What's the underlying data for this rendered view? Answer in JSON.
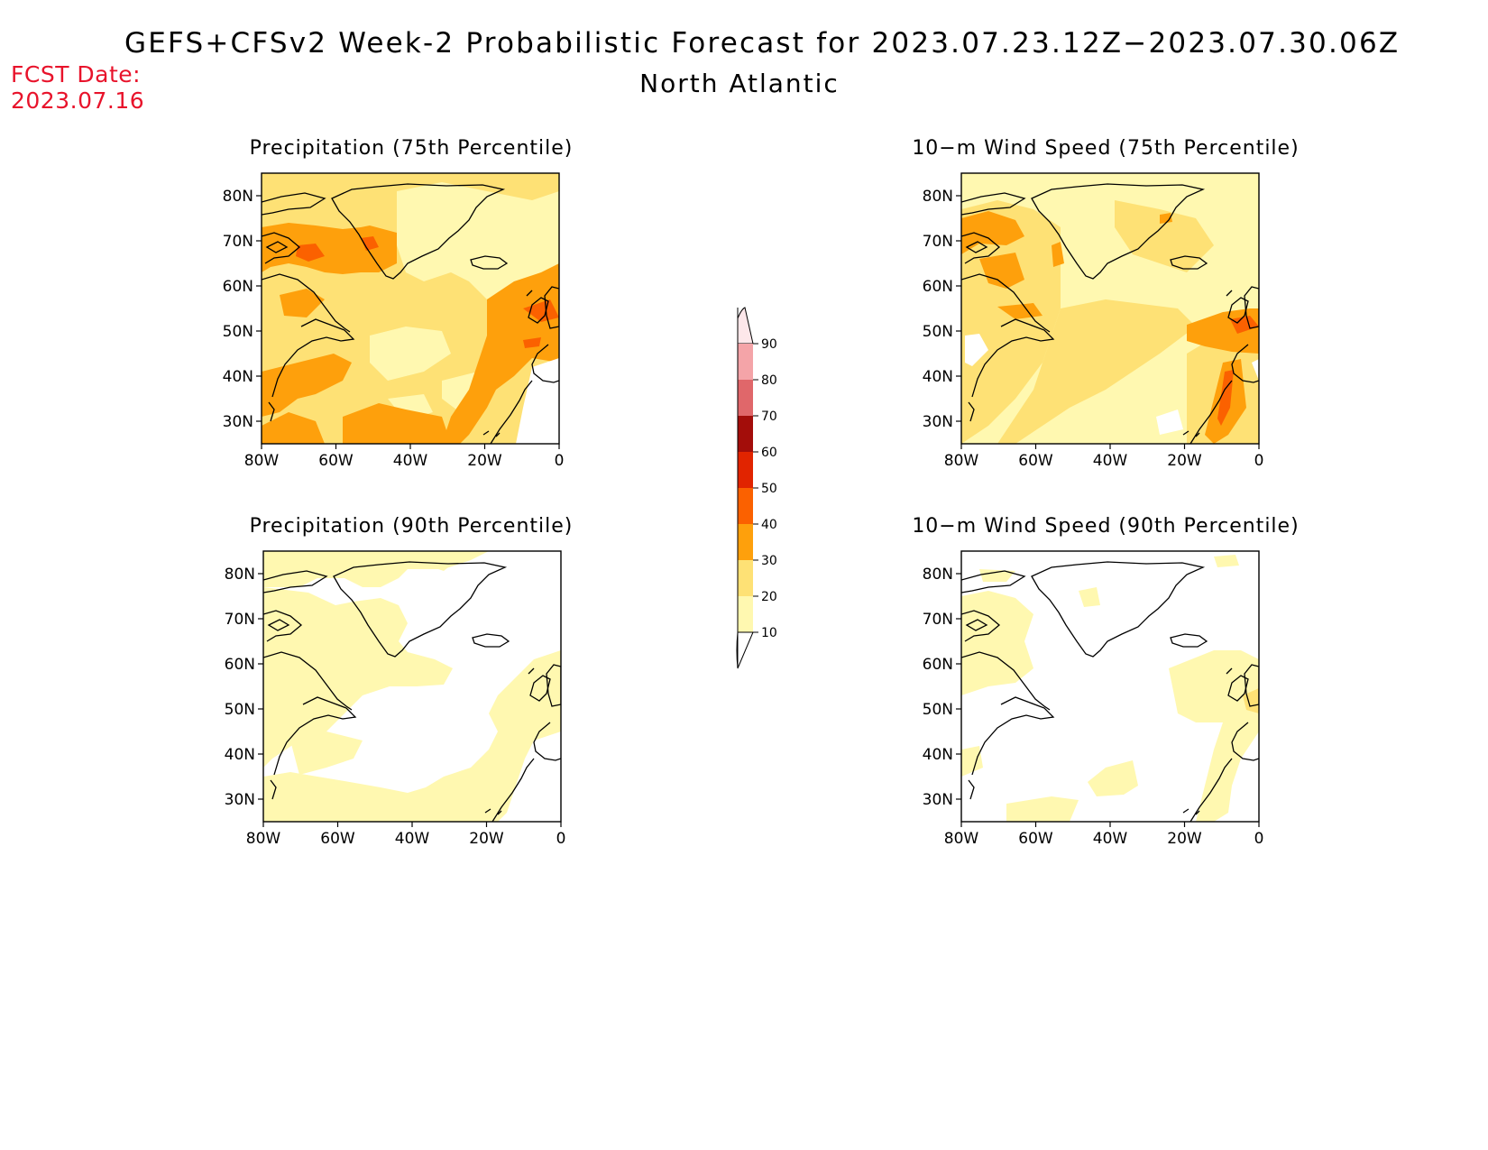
{
  "title": "GEFS+CFSv2 Week-2 Probabilistic Forecast for 2023.07.23.12Z−2023.07.30.06Z",
  "subtitle": "North Atlantic",
  "fcst_date": {
    "label": "FCST Date:",
    "value": "2023.07.16"
  },
  "lat_labels": [
    "80N",
    "70N",
    "60N",
    "50N",
    "40N",
    "30N"
  ],
  "lon_labels": [
    "80W",
    "60W",
    "40W",
    "20W",
    "0"
  ],
  "panels": [
    {
      "title": "Precipitation (75th Percentile)"
    },
    {
      "title": "10−m Wind Speed (75th Percentile)"
    },
    {
      "title": "Precipitation (90th Percentile)"
    },
    {
      "title": "10−m Wind Speed (90th Percentile)"
    }
  ],
  "colorbar": {
    "labels": [
      "90",
      "80",
      "70",
      "60",
      "50",
      "40",
      "30",
      "20",
      "10"
    ],
    "colors": [
      "#fde7ea",
      "#f4a4a8",
      "#e0676a",
      "#a30d0a",
      "#e12400",
      "#fb6100",
      "#fea00c",
      "#fee175",
      "#fff8b0"
    ]
  },
  "palette": {
    "light": "#fff8b0",
    "mid": "#fee175",
    "orange": "#fea00c",
    "dark": "#fb6100"
  }
}
